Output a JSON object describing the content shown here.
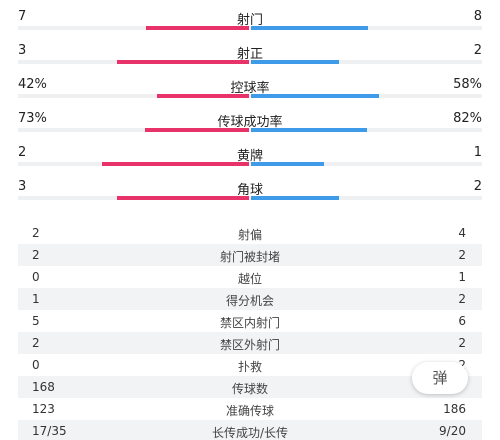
{
  "colors": {
    "home_bar": "#e8336a",
    "away_bar": "#3d9be9",
    "track": "#eef0f2",
    "alt_row": "#f2f3f5"
  },
  "comparison_stats": [
    {
      "label": "射门",
      "home": "7",
      "away": "8",
      "home_share": 0.467
    },
    {
      "label": "射正",
      "home": "3",
      "away": "2",
      "home_share": 0.6
    },
    {
      "label": "控球率",
      "home": "42%",
      "away": "58%",
      "home_share": 0.42
    },
    {
      "label": "传球成功率",
      "home": "73%",
      "away": "82%",
      "home_share": 0.471
    },
    {
      "label": "黄牌",
      "home": "2",
      "away": "1",
      "home_share": 0.667
    },
    {
      "label": "角球",
      "home": "3",
      "away": "2",
      "home_share": 0.6
    }
  ],
  "table_stats": [
    {
      "label": "射偏",
      "home": "2",
      "away": "4"
    },
    {
      "label": "射门被封堵",
      "home": "2",
      "away": "2"
    },
    {
      "label": "越位",
      "home": "0",
      "away": "1"
    },
    {
      "label": "得分机会",
      "home": "1",
      "away": "2"
    },
    {
      "label": "禁区内射门",
      "home": "5",
      "away": "6"
    },
    {
      "label": "禁区外射门",
      "home": "2",
      "away": "2"
    },
    {
      "label": "扑救",
      "home": "0",
      "away": "2"
    },
    {
      "label": "传球数",
      "home": "168",
      "away": ""
    },
    {
      "label": "准确传球",
      "home": "123",
      "away": "186"
    },
    {
      "label": "长传成功/长传",
      "home": "17/35",
      "away": "9/20"
    }
  ],
  "float_button": {
    "label": "弹"
  }
}
